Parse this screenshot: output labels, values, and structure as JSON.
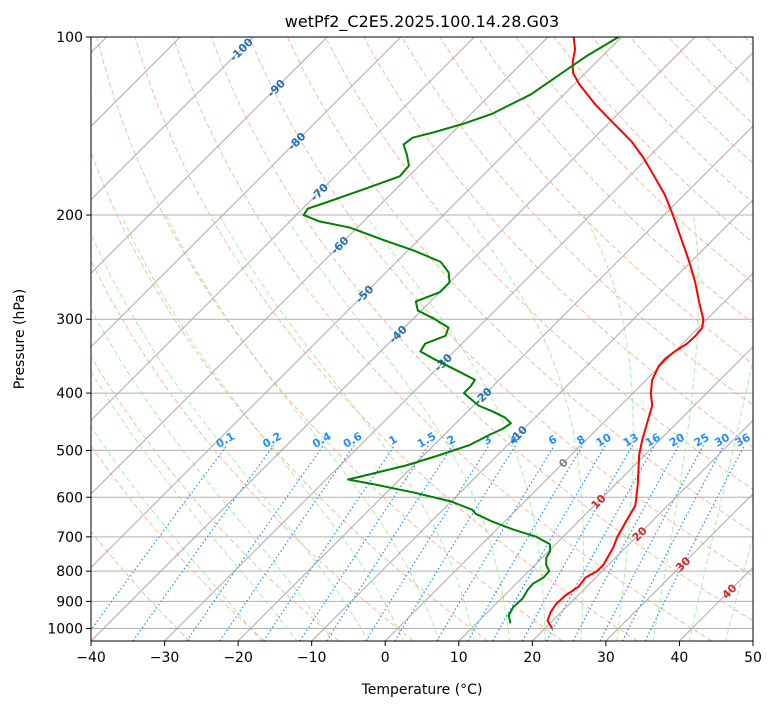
{
  "chart_data": {
    "type": "skew-t",
    "title": "wetPf2_C2E5.2025.100.14.28.G03",
    "xlabel": "Temperature (°C)",
    "ylabel": "Pressure (hPa)",
    "xlim": [
      -40,
      50
    ],
    "ylim": [
      1050,
      100
    ],
    "y_scale": "log",
    "x_ticks": [
      -40,
      -30,
      -20,
      -10,
      0,
      10,
      20,
      30,
      40,
      50
    ],
    "y_ticks": [
      1000,
      900,
      800,
      700,
      600,
      500,
      400,
      300,
      200,
      100
    ],
    "grid": true,
    "colors": {
      "temperature": "#ff0000",
      "dewpoint": "#008000",
      "isotherm": "#aaaaaa",
      "dry_adiabat": "#ffa07a",
      "moist_adiabat": "#90ee90",
      "mixing_ratio": "#1e90ff",
      "isotherm_label": "#1f6fb5",
      "mixing_ratio_label": "#1e90ff",
      "warm_label": "#d62728",
      "zero_label": "#808080"
    },
    "series": [
      {
        "key": "temperature",
        "points": [
          [
            1000,
            21.0
          ],
          [
            970,
            19.3
          ],
          [
            940,
            18.6
          ],
          [
            910,
            18.2
          ],
          [
            880,
            18.3
          ],
          [
            850,
            18.9
          ],
          [
            820,
            18.6
          ],
          [
            800,
            19.3
          ],
          [
            780,
            19.3
          ],
          [
            760,
            18.9
          ],
          [
            730,
            18.3
          ],
          [
            700,
            17.4
          ],
          [
            660,
            16.5
          ],
          [
            620,
            15.6
          ],
          [
            600,
            14.6
          ],
          [
            570,
            13.0
          ],
          [
            540,
            11.2
          ],
          [
            510,
            9.3
          ],
          [
            480,
            7.6
          ],
          [
            450,
            6.0
          ],
          [
            420,
            4.3
          ],
          [
            400,
            2.4
          ],
          [
            380,
            0.8
          ],
          [
            360,
            -0.2
          ],
          [
            350,
            -0.3
          ],
          [
            340,
            0.0
          ],
          [
            330,
            0.6
          ],
          [
            320,
            0.7
          ],
          [
            310,
            0.5
          ],
          [
            300,
            -0.5
          ],
          [
            280,
            -3.5
          ],
          [
            260,
            -6.6
          ],
          [
            240,
            -10.2
          ],
          [
            220,
            -14.3
          ],
          [
            200,
            -18.8
          ],
          [
            185,
            -22.6
          ],
          [
            172,
            -26.6
          ],
          [
            160,
            -30.6
          ],
          [
            150,
            -34.5
          ],
          [
            140,
            -39.3
          ],
          [
            130,
            -44.4
          ],
          [
            120,
            -49.4
          ],
          [
            115,
            -51.7
          ],
          [
            110,
            -53.3
          ],
          [
            105,
            -54.6
          ],
          [
            100,
            -56.5
          ]
        ]
      },
      {
        "key": "dewpoint",
        "points": [
          [
            980,
            14.6
          ],
          [
            950,
            13.3
          ],
          [
            920,
            12.8
          ],
          [
            890,
            12.9
          ],
          [
            860,
            12.4
          ],
          [
            840,
            12.3
          ],
          [
            820,
            12.9
          ],
          [
            800,
            12.8
          ],
          [
            780,
            11.5
          ],
          [
            760,
            10.6
          ],
          [
            740,
            10.2
          ],
          [
            720,
            9.2
          ],
          [
            700,
            6.4
          ],
          [
            680,
            2.2
          ],
          [
            660,
            -1.6
          ],
          [
            640,
            -5.0
          ],
          [
            630,
            -6.0
          ],
          [
            610,
            -10.0
          ],
          [
            590,
            -16.0
          ],
          [
            570,
            -23.0
          ],
          [
            560,
            -27.0
          ],
          [
            550,
            -25.0
          ],
          [
            530,
            -21.0
          ],
          [
            510,
            -18.0
          ],
          [
            490,
            -15.2
          ],
          [
            470,
            -13.8
          ],
          [
            460,
            -12.9
          ],
          [
            450,
            -12.5
          ],
          [
            440,
            -14.1
          ],
          [
            430,
            -16.5
          ],
          [
            420,
            -19.3
          ],
          [
            400,
            -23.0
          ],
          [
            390,
            -23.0
          ],
          [
            380,
            -23.3
          ],
          [
            370,
            -26.0
          ],
          [
            350,
            -31.8
          ],
          [
            340,
            -34.6
          ],
          [
            330,
            -35.0
          ],
          [
            320,
            -33.3
          ],
          [
            310,
            -34.0
          ],
          [
            300,
            -37.0
          ],
          [
            290,
            -40.5
          ],
          [
            280,
            -42.0
          ],
          [
            270,
            -40.0
          ],
          [
            260,
            -40.0
          ],
          [
            250,
            -41.5
          ],
          [
            240,
            -44.0
          ],
          [
            230,
            -49.0
          ],
          [
            220,
            -55.0
          ],
          [
            210,
            -61.0
          ],
          [
            205,
            -66.0
          ],
          [
            200,
            -69.0
          ],
          [
            195,
            -69.3
          ],
          [
            190,
            -67.5
          ],
          [
            180,
            -64.0
          ],
          [
            172,
            -61.2
          ],
          [
            165,
            -61.4
          ],
          [
            158,
            -63.2
          ],
          [
            152,
            -65.0
          ],
          [
            148,
            -64.7
          ],
          [
            145,
            -62.6
          ],
          [
            140,
            -59.6
          ],
          [
            135,
            -57.2
          ],
          [
            125,
            -54.5
          ],
          [
            115,
            -53.2
          ],
          [
            108,
            -52.2
          ],
          [
            100,
            -50.4
          ]
        ]
      }
    ],
    "isotherm_labels": [
      "-100",
      "-90",
      "-80",
      "-70",
      "-60",
      "-50",
      "-40",
      "-30",
      "-20",
      "-10",
      "0",
      "10",
      "20",
      "30",
      "40"
    ],
    "mixing_ratio_labels": [
      "0.1",
      "0.2",
      "0.4",
      "0.6",
      "1",
      "1.5",
      "2",
      "3",
      "4",
      "6",
      "8",
      "10",
      "13",
      "16",
      "20",
      "25",
      "30",
      "36"
    ]
  }
}
